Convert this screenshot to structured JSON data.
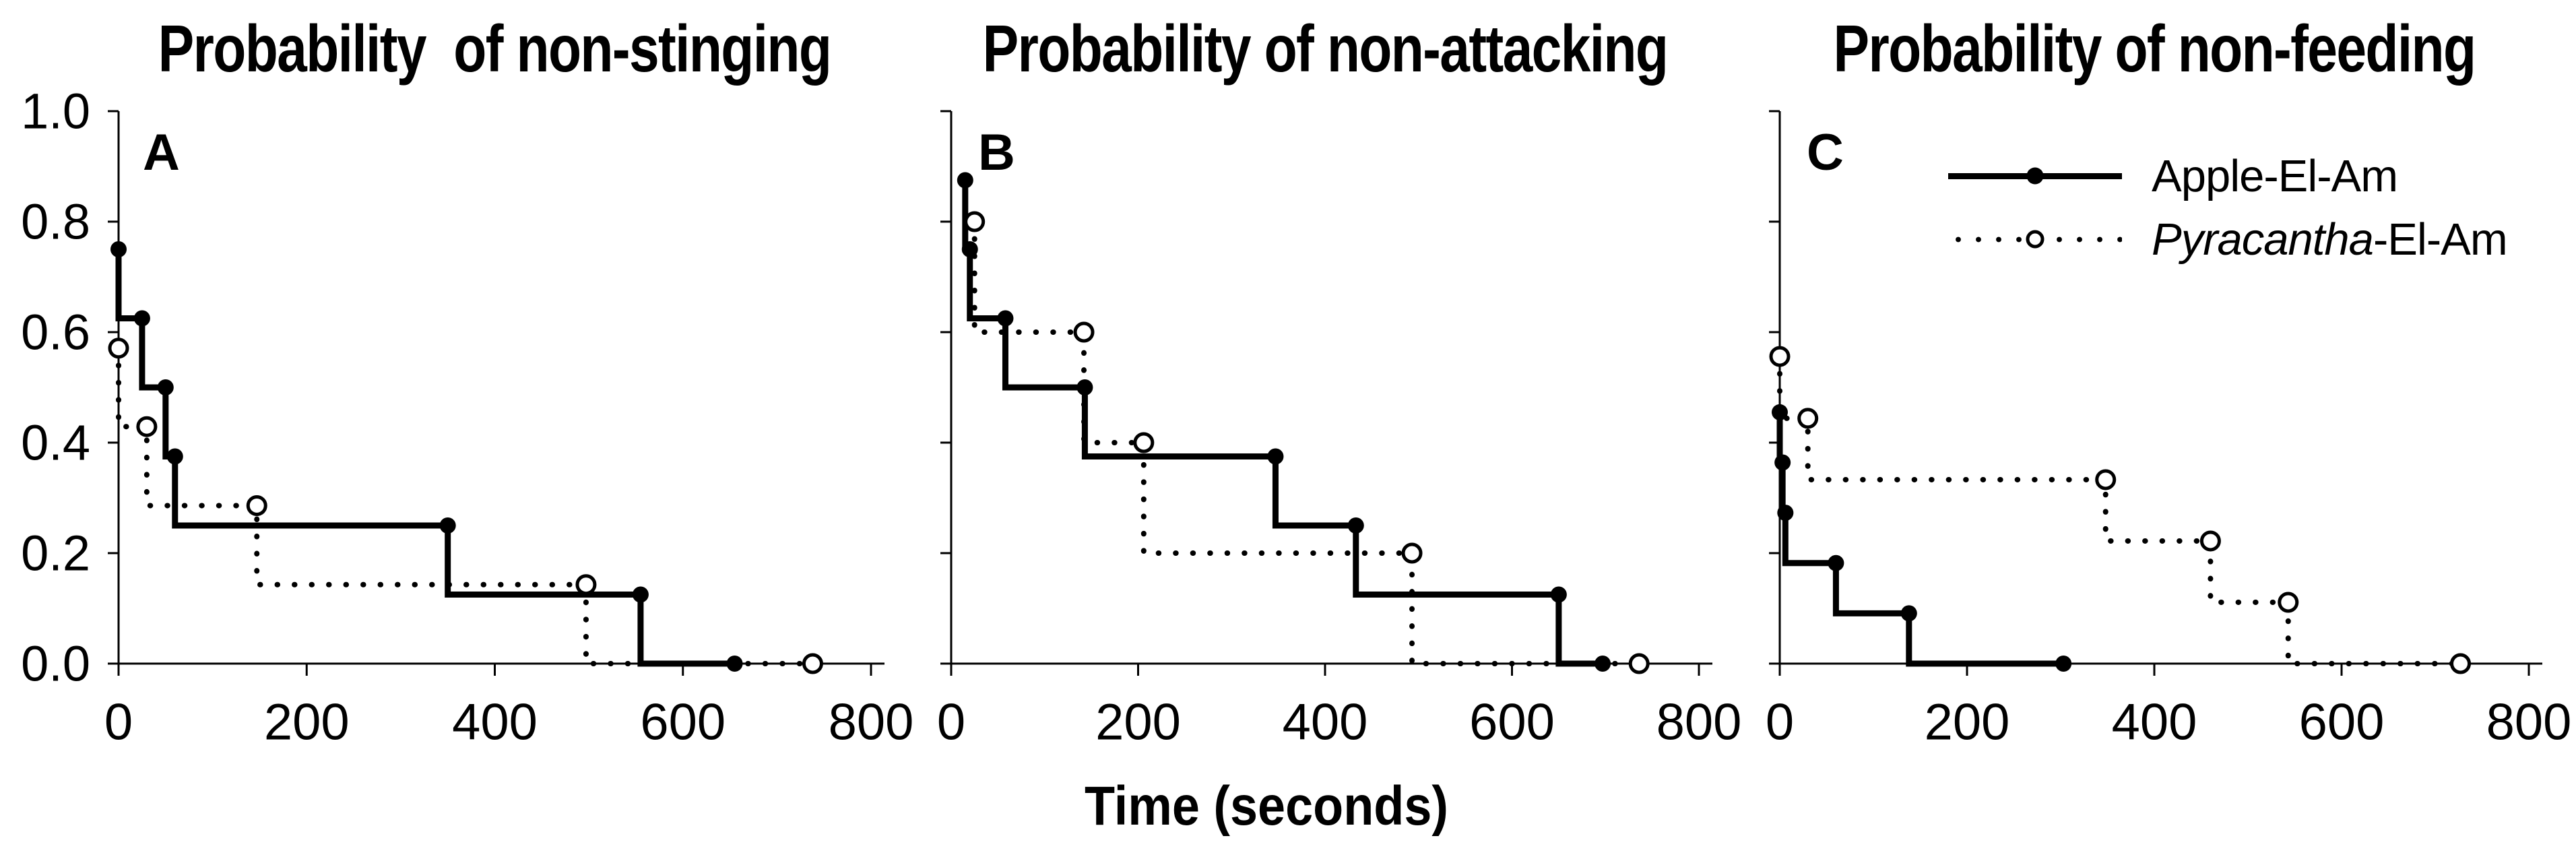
{
  "figure": {
    "background": "#ffffff",
    "ink": "#000000"
  },
  "chart_data": {
    "type": "line",
    "subtype": "kaplan-meier-step-curves",
    "x_axis_label": "Time (seconds)",
    "xlim": [
      0,
      800
    ],
    "ylim": [
      0.0,
      1.0
    ],
    "x_ticks": [
      0,
      200,
      400,
      600,
      800
    ],
    "y_ticks": [
      0.0,
      0.2,
      0.4,
      0.6,
      0.8,
      1.0
    ],
    "y_tick_labels": [
      "0.0",
      "0.2",
      "0.4",
      "0.6",
      "0.8",
      "1.0"
    ],
    "grid": false,
    "legend_position": "top-right of panel C",
    "step_semantics": "marker at (t,p); curve drops vertically at t to the next p, then runs horizontally to the next marker",
    "panels": [
      {
        "letter": "A",
        "title": "Probability  of non-stinging",
        "show_y_tick_labels": true,
        "series": [
          {
            "name": "Apple-El-Am",
            "line": "solid",
            "marker": "filled-circle",
            "points": [
              [
                0,
                0.75
              ],
              [
                25,
                0.625
              ],
              [
                50,
                0.5
              ],
              [
                60,
                0.375
              ],
              [
                350,
                0.25
              ],
              [
                555,
                0.125
              ],
              [
                655,
                0
              ]
            ]
          },
          {
            "name": "Pyracantha-El-Am",
            "line": "dotted",
            "marker": "open-circle",
            "points": [
              [
                0,
                0.571
              ],
              [
                30,
                0.429
              ],
              [
                147,
                0.286
              ],
              [
                497,
                0.143
              ],
              [
                738,
                0
              ]
            ]
          }
        ]
      },
      {
        "letter": "B",
        "title": "Probability of non-attacking",
        "show_y_tick_labels": false,
        "series": [
          {
            "name": "Apple-El-Am",
            "line": "solid",
            "marker": "filled-circle",
            "points": [
              [
                15,
                0.875
              ],
              [
                20,
                0.75
              ],
              [
                58,
                0.625
              ],
              [
                143,
                0.5
              ],
              [
                347,
                0.375
              ],
              [
                433,
                0.25
              ],
              [
                650,
                0.125
              ],
              [
                697,
                0
              ]
            ]
          },
          {
            "name": "Pyracantha-El-Am",
            "line": "dotted",
            "marker": "open-circle",
            "points": [
              [
                25,
                0.8
              ],
              [
                142,
                0.6
              ],
              [
                206,
                0.4
              ],
              [
                493,
                0.2
              ],
              [
                736,
                0
              ]
            ]
          }
        ]
      },
      {
        "letter": "C",
        "title": "Probability of non-feeding",
        "show_y_tick_labels": false,
        "series": [
          {
            "name": "Apple-El-Am",
            "line": "solid",
            "marker": "filled-circle",
            "points": [
              [
                0,
                0.455
              ],
              [
                3,
                0.364
              ],
              [
                6,
                0.273
              ],
              [
                60,
                0.182
              ],
              [
                138,
                0.091
              ],
              [
                303,
                0
              ]
            ]
          },
          {
            "name": "Pyracantha-El-Am",
            "line": "dotted",
            "marker": "open-circle",
            "points": [
              [
                0,
                0.556
              ],
              [
                30,
                0.444
              ],
              [
                348,
                0.333
              ],
              [
                460,
                0.222
              ],
              [
                543,
                0.111
              ],
              [
                727,
                0
              ]
            ]
          }
        ]
      }
    ]
  },
  "legend": {
    "items": [
      {
        "label": "Apple-El-Am",
        "line": "solid",
        "marker": "filled-circle"
      },
      {
        "label_italic": "Pyracantha",
        "label_rest": "-El-Am",
        "line": "dotted",
        "marker": "open-circle"
      }
    ]
  }
}
